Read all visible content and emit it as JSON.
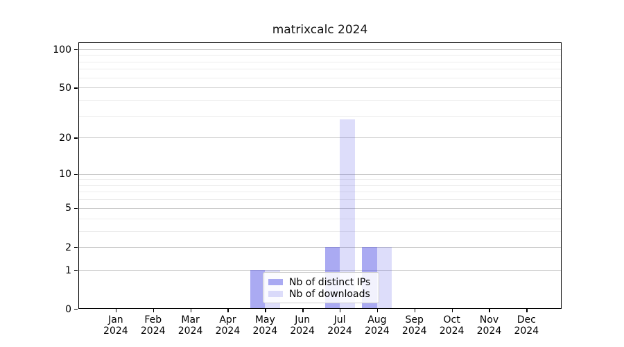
{
  "title": "matrixcalc 2024",
  "chart_data": {
    "type": "bar",
    "title": "matrixcalc 2024",
    "x_categories": [
      "Jan 2024",
      "Feb 2024",
      "Mar 2024",
      "Apr 2024",
      "May 2024",
      "Jun 2024",
      "Jul 2024",
      "Aug 2024",
      "Sep 2024",
      "Oct 2024",
      "Nov 2024",
      "Dec 2024"
    ],
    "series": [
      {
        "name": "Nb of distinct IPs",
        "color": "rgba(85,85,230,0.5)",
        "values": [
          0,
          0,
          0,
          0,
          1,
          0,
          2,
          2,
          0,
          0,
          0,
          0
        ]
      },
      {
        "name": "Nb of downloads",
        "color": "rgba(85,85,230,0.2)",
        "values": [
          0,
          0,
          0,
          0,
          1,
          0,
          28,
          2,
          0,
          0,
          0,
          0
        ]
      }
    ],
    "y_scale": "log10(1+y)",
    "y_major_ticks": [
      0,
      1,
      2,
      5,
      10,
      20,
      50,
      100
    ],
    "y_minor_ticks": [
      3,
      4,
      6,
      7,
      8,
      9,
      30,
      40,
      60,
      70,
      80,
      90
    ],
    "ylim": [
      0,
      113
    ],
    "grid": true,
    "legend_position": "lower center (inside axes)",
    "colors": {
      "axis": "#000000",
      "grid_major": "#c9c9c9",
      "grid_minor": "#ececec",
      "legend_border": "#cccccc"
    }
  }
}
